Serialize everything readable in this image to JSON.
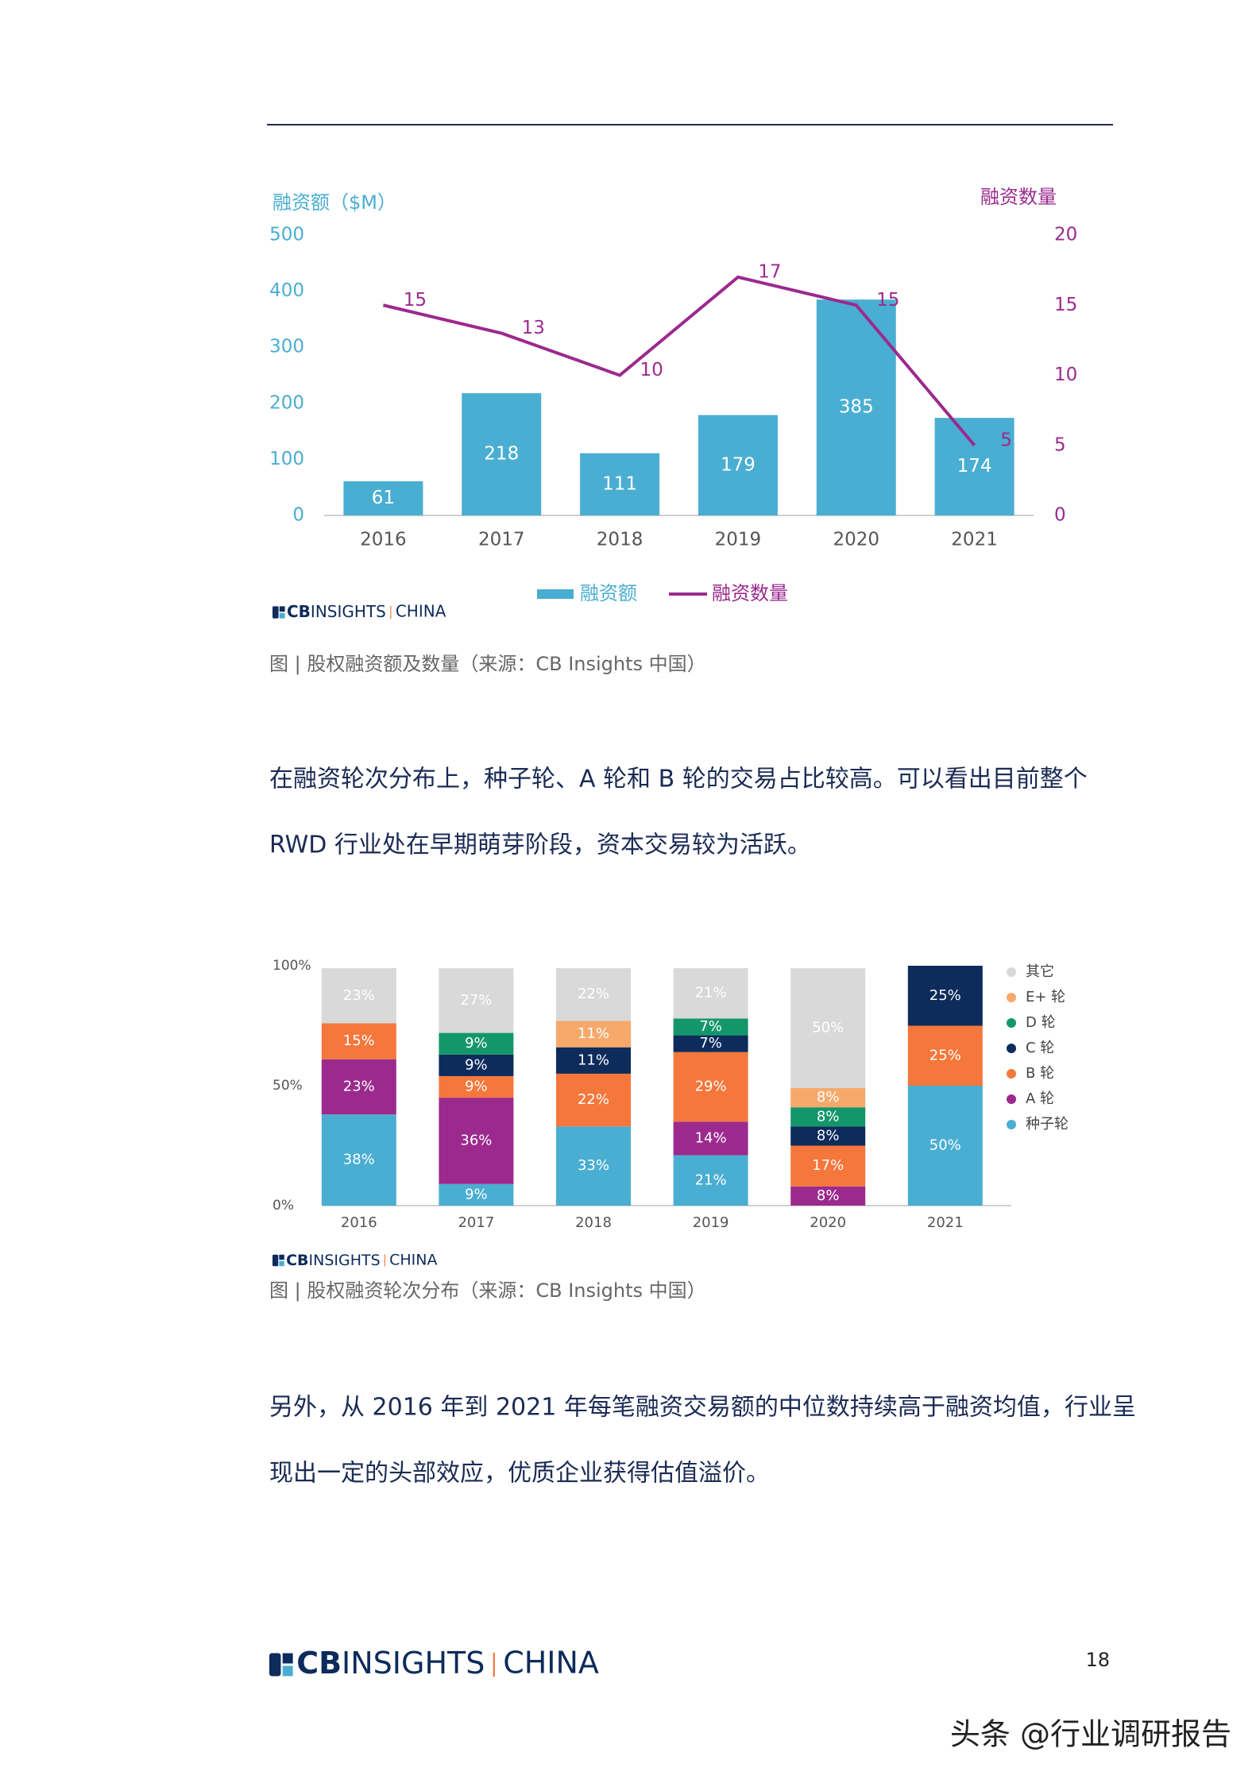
{
  "chart_data": [
    {
      "type": "combo",
      "y_label": "融资额（$M）",
      "y2_label": "融资数量",
      "categories": [
        "2016",
        "2017",
        "2018",
        "2019",
        "2020",
        "2021"
      ],
      "series": [
        {
          "name": "融资额",
          "type": "bar",
          "color": "#4aaed2",
          "values": [
            61,
            218,
            111,
            179,
            385,
            174
          ]
        },
        {
          "name": "融资数量",
          "type": "line",
          "axis": "y2",
          "color": "#9c2a8e",
          "values": [
            15,
            13,
            10,
            17,
            15,
            5
          ]
        }
      ],
      "ylim": [
        0,
        500
      ],
      "yticks": [
        0,
        100,
        200,
        300,
        400,
        500
      ],
      "y2lim": [
        0,
        20
      ],
      "y2ticks": [
        0,
        5,
        10,
        15,
        20
      ]
    },
    {
      "type": "stacked_bar",
      "categories": [
        "2016",
        "2017",
        "2018",
        "2019",
        "2020",
        "2021"
      ],
      "series": [
        {
          "name": "种子轮",
          "color": "#4aaed2",
          "values": [
            38,
            9,
            33,
            21,
            0,
            50
          ],
          "value_labels": [
            "38%",
            "9%",
            "33%",
            "21%",
            null,
            "50%"
          ]
        },
        {
          "name": "A 轮",
          "color": "#9c2a8e",
          "values": [
            23,
            36,
            0,
            14,
            8,
            0
          ],
          "value_labels": [
            "23%",
            "36%",
            null,
            "14%",
            "8%",
            null
          ]
        },
        {
          "name": "B 轮",
          "color": "#f5773b",
          "values": [
            15,
            9,
            22,
            29,
            17,
            25
          ],
          "value_labels": [
            "15%",
            "9%",
            "22%",
            "29%",
            "17%",
            "25%"
          ]
        },
        {
          "name": "C 轮",
          "color": "#0d2b5b",
          "values": [
            0,
            9,
            11,
            7,
            8,
            25
          ],
          "value_labels": [
            null,
            "9%",
            "11%",
            "7%",
            "8%",
            "25%"
          ]
        },
        {
          "name": "D 轮",
          "color": "#14966b",
          "values": [
            0,
            9,
            0,
            7,
            8,
            0
          ],
          "value_labels": [
            null,
            "9%",
            null,
            "7%",
            "8%",
            null
          ]
        },
        {
          "name": "E+ 轮",
          "color": "#f6a96b",
          "values": [
            0,
            0,
            11,
            0,
            8,
            0
          ],
          "value_labels": [
            null,
            null,
            "11%",
            null,
            "8%",
            null
          ]
        },
        {
          "name": "其它",
          "color": "#d9d9d9",
          "values": [
            23,
            27,
            22,
            21,
            50,
            0
          ],
          "value_labels": [
            "23%",
            "27%",
            "22%",
            "21%",
            "50%",
            null
          ]
        }
      ],
      "ylim": [
        0,
        100
      ],
      "yticks": [
        {
          "value": 0,
          "label": "0%"
        },
        {
          "value": 50,
          "label": "50%"
        },
        {
          "value": 100,
          "label": "100%"
        }
      ]
    }
  ],
  "logo": {
    "cb": "CB",
    "insights": "INSIGHTS",
    "china": "CHINA"
  },
  "captions": [
    "图 | 股权融资额及数量（来源：CB Insights 中国）",
    "图 | 股权融资轮次分布（来源：CB Insights 中国）"
  ],
  "paragraphs": [
    [
      "在融资轮次分布上，种子轮、A 轮和 B 轮的交易占比较高。可以看出目前整个",
      "RWD 行业处在早期萌芽阶段，资本交易较为活跃。"
    ],
    [
      "另外，从 2016 年到 2021 年每笔融资交易额的中位数持续高于融资均值，行业呈",
      "现出一定的头部效应，优质企业获得估值溢价。"
    ]
  ],
  "page_number": "18",
  "watermark": "头条 @行业调研报告"
}
